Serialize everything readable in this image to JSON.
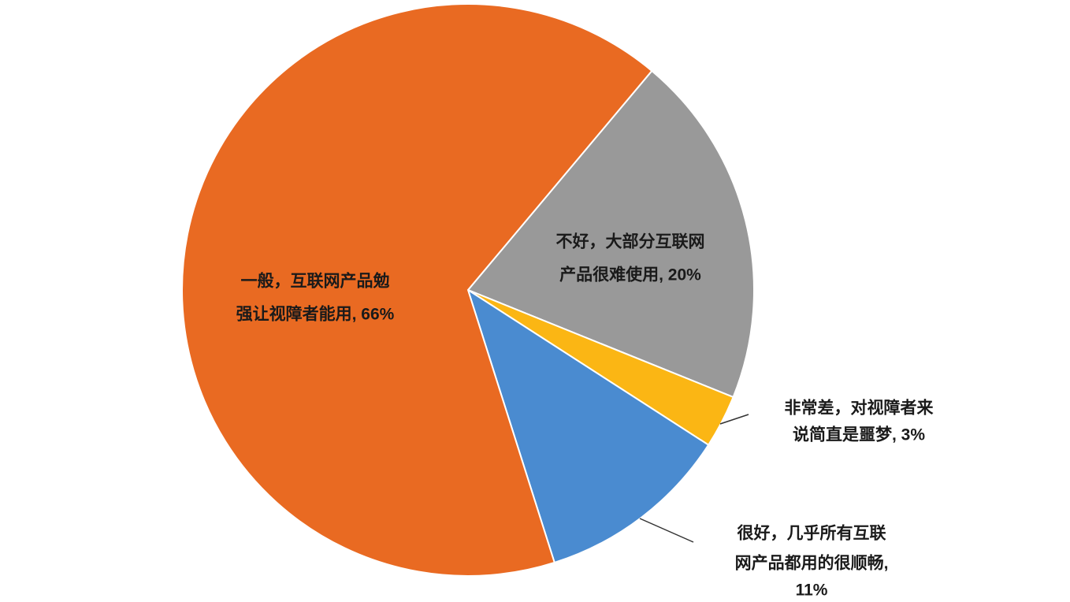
{
  "chart_data": {
    "type": "pie",
    "start_angle": 40,
    "labels": [
      [
        "不好，大部分互联网",
        "产品很难使用, 20%"
      ],
      [
        "非常差，对视障者来",
        "说简直是噩梦, 3%"
      ],
      [
        "很好，几乎所有互联",
        "网产品都用的很顺畅,",
        "11%"
      ],
      [
        "一般，互联网产品勉",
        "强让视障者能用, 66%"
      ]
    ],
    "values": [
      20,
      3,
      11,
      66
    ],
    "colors": [
      "#999999",
      "#fbb614",
      "#4a8bd0",
      "#e96a22"
    ]
  }
}
